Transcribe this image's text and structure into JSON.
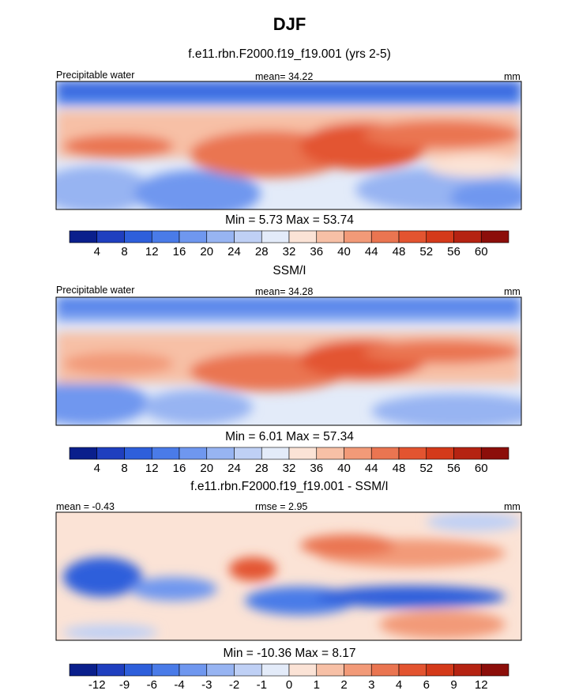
{
  "title": "DJF",
  "colors": {
    "precip": [
      "#0a1f8c",
      "#1f3fbf",
      "#2e5fdb",
      "#4a7be8",
      "#6f97ef",
      "#97b4f2",
      "#bfd0f5",
      "#e3ebf9",
      "#fbe3d6",
      "#f7c0a6",
      "#f29a78",
      "#ea7551",
      "#e35430",
      "#d43a1a",
      "#b52312",
      "#8c0e0a"
    ],
    "diff": [
      "#0a1f8c",
      "#1f3fbf",
      "#2e5fdb",
      "#4a7be8",
      "#6f97ef",
      "#97b4f2",
      "#bfd0f5",
      "#e3ebf9",
      "#fbe3d6",
      "#f7c0a6",
      "#f29a78",
      "#ea7551",
      "#e35430",
      "#d43a1a",
      "#b52312",
      "#8c0e0a"
    ]
  },
  "chart_data": [
    {
      "type": "heatmap",
      "panel": "model",
      "subtitle": "f.e11.rbn.F2000.f19_f19.001 (yrs 2-5)",
      "left_label": "Precipitable water",
      "center_label": "mean=  34.22",
      "units": "mm",
      "min_max": "Min =   5.73 Max =  53.74",
      "colorbar_ticks": [
        "4",
        "8",
        "12",
        "16",
        "20",
        "24",
        "28",
        "32",
        "36",
        "40",
        "44",
        "48",
        "52",
        "56",
        "60"
      ]
    },
    {
      "type": "heatmap",
      "panel": "observations",
      "subtitle": "SSM/I",
      "left_label": "Precipitable water",
      "center_label": "mean=  34.28",
      "units": "mm",
      "min_max": "Min =   6.01 Max =  57.34",
      "colorbar_ticks": [
        "4",
        "8",
        "12",
        "16",
        "20",
        "24",
        "28",
        "32",
        "36",
        "40",
        "44",
        "48",
        "52",
        "56",
        "60"
      ]
    },
    {
      "type": "heatmap",
      "panel": "difference",
      "subtitle": "f.e11.rbn.F2000.f19_f19.001 - SSM/I",
      "left_label": "mean =  -0.43",
      "center_label": "rmse =   2.95",
      "units": "mm",
      "min_max": "Min = -10.36 Max =   8.17",
      "colorbar_ticks": [
        "-12",
        "-9",
        "-6",
        "-4",
        "-3",
        "-2",
        "-1",
        "0",
        "1",
        "2",
        "3",
        "4",
        "6",
        "9",
        "12"
      ]
    }
  ]
}
